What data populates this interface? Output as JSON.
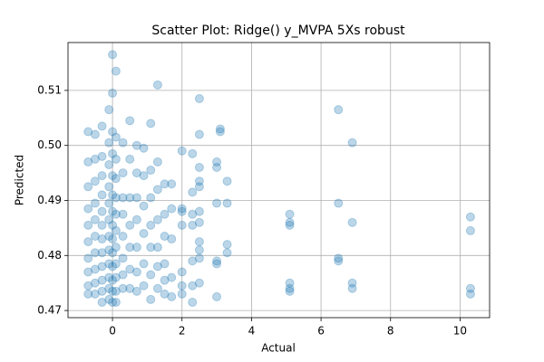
{
  "chart_data": {
    "type": "scatter",
    "title": "Scatter Plot: Ridge() y_MVPA 5Xs robust",
    "xlabel": "Actual",
    "ylabel": "Predicted",
    "color": "#1f77b4",
    "grid": true,
    "xlim": [
      -1.28,
      10.85
    ],
    "ylim": [
      0.4687,
      0.5187
    ],
    "xticks": [
      0,
      2,
      4,
      6,
      8,
      10
    ],
    "yticks": [
      0.47,
      0.48,
      0.49,
      {
        "value": 0.5,
        "label": "0.50"
      },
      0.51
    ],
    "x": [
      10.3,
      10.3,
      10.3,
      10.3,
      6.9,
      6.9,
      6.9,
      6.9,
      6.5,
      6.5,
      6.5,
      6.5,
      5.1,
      5.1,
      5.1,
      5.1,
      5.1,
      5.1,
      3.3,
      3.3,
      3.3,
      3.3,
      3.1,
      3.1,
      3.0,
      3.0,
      3.0,
      3.0,
      3.0,
      3.0,
      2.5,
      2.5,
      2.5,
      2.5,
      2.5,
      2.5,
      2.5,
      2.5,
      2.5,
      2.5,
      2.5,
      2.3,
      2.3,
      2.3,
      2.3,
      2.3,
      2.3,
      2.3,
      2.0,
      2.0,
      2.0,
      2.0,
      2.0,
      2.0,
      2.0,
      1.7,
      1.7,
      1.7,
      1.7,
      1.7,
      1.5,
      1.5,
      1.5,
      1.5,
      1.5,
      1.5,
      1.3,
      1.3,
      1.3,
      1.3,
      1.3,
      1.3,
      1.3,
      1.1,
      1.1,
      1.1,
      1.1,
      1.1,
      1.1,
      1.1,
      0.9,
      0.9,
      0.9,
      0.9,
      0.9,
      0.9,
      0.7,
      0.7,
      0.7,
      0.7,
      0.7,
      0.7,
      0.7,
      0.5,
      0.5,
      0.5,
      0.5,
      0.5,
      0.5,
      0.5,
      0.3,
      0.3,
      0.3,
      0.3,
      0.3,
      0.3,
      0.3,
      0.3,
      0.1,
      0.1,
      0.1,
      0.1,
      0.1,
      0.1,
      0.1,
      0.1,
      0.1,
      0.1,
      0.1,
      0.1,
      0,
      0,
      0,
      0,
      0,
      0,
      0,
      0,
      0,
      0,
      0,
      0,
      0,
      0,
      -0.1,
      -0.1,
      -0.1,
      -0.1,
      -0.1,
      -0.1,
      -0.1,
      -0.1,
      -0.1,
      -0.1,
      -0.1,
      -0.1,
      -0.3,
      -0.3,
      -0.3,
      -0.3,
      -0.3,
      -0.3,
      -0.3,
      -0.3,
      -0.3,
      -0.3,
      -0.3,
      -0.3,
      -0.5,
      -0.5,
      -0.5,
      -0.5,
      -0.5,
      -0.5,
      -0.5,
      -0.5,
      -0.5,
      -0.5,
      -0.7,
      -0.7,
      -0.7,
      -0.7,
      -0.7,
      -0.7,
      -0.7,
      -0.7,
      -0.7,
      -0.7
    ],
    "y": [
      0.487,
      0.4845,
      0.474,
      0.473,
      0.5005,
      0.486,
      0.475,
      0.474,
      0.5065,
      0.4895,
      0.4795,
      0.479,
      0.4875,
      0.486,
      0.4855,
      0.475,
      0.474,
      0.4735,
      0.4935,
      0.4895,
      0.482,
      0.4805,
      0.503,
      0.5025,
      0.497,
      0.496,
      0.4895,
      0.479,
      0.4785,
      0.4725,
      0.5085,
      0.502,
      0.496,
      0.4935,
      0.4925,
      0.488,
      0.486,
      0.4825,
      0.481,
      0.4795,
      0.475,
      0.4985,
      0.4915,
      0.4875,
      0.4855,
      0.479,
      0.4745,
      0.4715,
      0.499,
      0.4885,
      0.488,
      0.4855,
      0.477,
      0.4745,
      0.473,
      0.493,
      0.4885,
      0.483,
      0.476,
      0.4725,
      0.493,
      0.4875,
      0.4835,
      0.4785,
      0.4755,
      0.473,
      0.511,
      0.497,
      0.492,
      0.4865,
      0.4815,
      0.478,
      0.474,
      0.504,
      0.4955,
      0.4905,
      0.4855,
      0.4815,
      0.4765,
      0.472,
      0.4995,
      0.4945,
      0.489,
      0.484,
      0.4785,
      0.4745,
      0.5,
      0.495,
      0.4905,
      0.4865,
      0.4815,
      0.477,
      0.4735,
      0.5045,
      0.4975,
      0.4905,
      0.4855,
      0.4815,
      0.4775,
      0.474,
      0.5005,
      0.495,
      0.4905,
      0.4875,
      0.4835,
      0.4795,
      0.4765,
      0.474,
      0.5135,
      0.5015,
      0.4975,
      0.494,
      0.4905,
      0.4875,
      0.4845,
      0.4815,
      0.4785,
      0.476,
      0.4735,
      0.4715,
      0.5165,
      0.5095,
      0.5025,
      0.4985,
      0.4945,
      0.491,
      0.488,
      0.4855,
      0.483,
      0.4805,
      0.478,
      0.4755,
      0.4735,
      0.4715,
      0.5065,
      0.5005,
      0.4965,
      0.4925,
      0.4895,
      0.4865,
      0.4835,
      0.481,
      0.4785,
      0.476,
      0.474,
      0.472,
      0.5035,
      0.498,
      0.4945,
      0.491,
      0.488,
      0.4855,
      0.483,
      0.4805,
      0.478,
      0.4755,
      0.4735,
      0.4715,
      0.502,
      0.4975,
      0.4935,
      0.4895,
      0.4865,
      0.4835,
      0.4805,
      0.4775,
      0.475,
      0.473,
      0.5025,
      0.497,
      0.4925,
      0.4885,
      0.4855,
      0.4825,
      0.4795,
      0.477,
      0.4745,
      0.473
    ]
  }
}
